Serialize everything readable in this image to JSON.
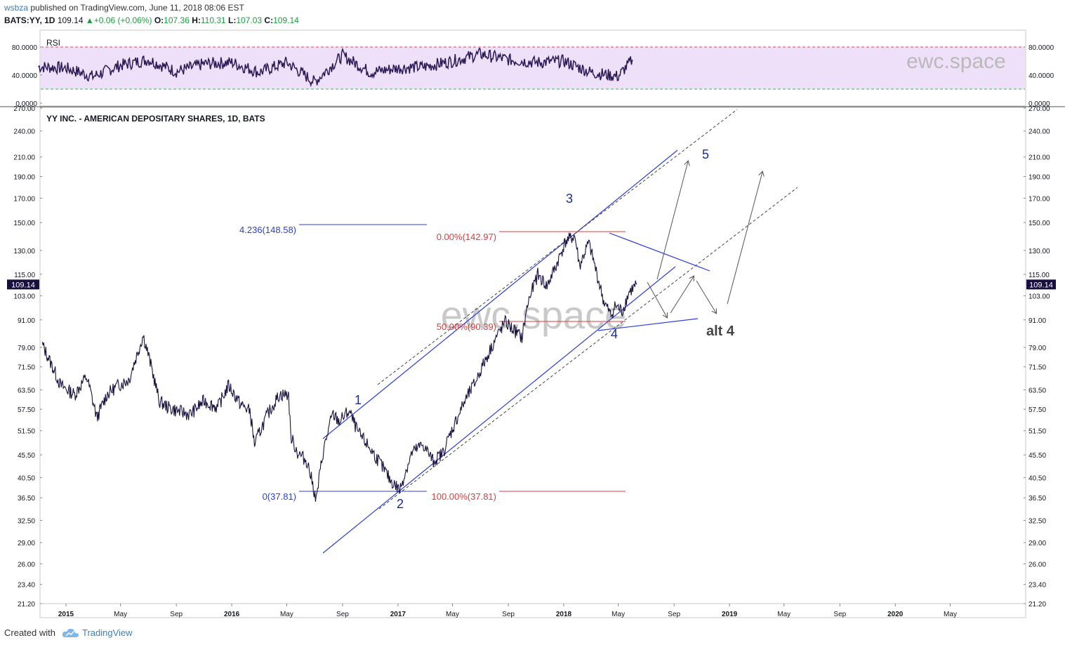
{
  "header": {
    "author": "wsbza",
    "published_text": " published on TradingView.com, June 11, 2018 08:06 EST",
    "symbol": "BATS:YY, 1D",
    "last": "109.14",
    "change": "+0.06 (+0.06%)",
    "open_label": "O:",
    "open": "107.36",
    "high_label": "H:",
    "high": "110.31",
    "low_label": "L:",
    "low": "107.03",
    "close_label": "C:",
    "close": "109.14"
  },
  "footer": {
    "created_with": "Created with",
    "brand": "TradingView"
  },
  "chart_data": [
    {
      "type": "line",
      "title": "RSI",
      "ylim": [
        0,
        100
      ],
      "y_ticks": [
        "80.0000",
        "40.0000",
        "0.0000"
      ],
      "overbought": 80,
      "oversold": 20,
      "band_color": "#efe0fa",
      "line_color": "#2a1a55",
      "watermark": "ewc.space",
      "x": [
        "2014-11",
        "2015-01",
        "2015-03",
        "2015-05",
        "2015-07",
        "2015-09",
        "2015-11",
        "2016-01",
        "2016-03",
        "2016-05",
        "2016-07",
        "2016-09",
        "2016-11",
        "2017-01",
        "2017-03",
        "2017-05",
        "2017-07",
        "2017-09",
        "2017-11",
        "2018-01",
        "2018-03",
        "2018-05",
        "2018-06"
      ],
      "values": [
        52,
        50,
        38,
        54,
        62,
        45,
        56,
        58,
        44,
        58,
        30,
        68,
        44,
        50,
        52,
        60,
        70,
        62,
        58,
        60,
        44,
        38,
        62
      ]
    },
    {
      "type": "line",
      "title": "YY INC. - AMERICAN DEPOSITARY SHARES, 1D, BATS",
      "y_scale": "log",
      "ylim": [
        21.2,
        270
      ],
      "y_ticks": [
        "270.00",
        "240.00",
        "210.00",
        "190.00",
        "170.00",
        "150.00",
        "130.00",
        "115.00",
        "103.00",
        "91.00",
        "79.00",
        "71.50",
        "63.50",
        "57.50",
        "51.50",
        "45.50",
        "40.50",
        "36.50",
        "32.50",
        "29.00",
        "26.00",
        "23.40",
        "21.20"
      ],
      "x_ticks": [
        {
          "label": "2015",
          "date": "2015-01-01",
          "bold": true
        },
        {
          "label": "May",
          "date": "2015-05-01",
          "bold": false
        },
        {
          "label": "Sep",
          "date": "2015-09-01",
          "bold": false
        },
        {
          "label": "2016",
          "date": "2016-01-01",
          "bold": true
        },
        {
          "label": "May",
          "date": "2016-05-01",
          "bold": false
        },
        {
          "label": "Sep",
          "date": "2016-09-01",
          "bold": false
        },
        {
          "label": "2017",
          "date": "2017-01-01",
          "bold": true
        },
        {
          "label": "May",
          "date": "2017-05-01",
          "bold": false
        },
        {
          "label": "Sep",
          "date": "2017-09-01",
          "bold": false
        },
        {
          "label": "2018",
          "date": "2018-01-01",
          "bold": true
        },
        {
          "label": "May",
          "date": "2018-05-01",
          "bold": false
        },
        {
          "label": "Sep",
          "date": "2018-09-01",
          "bold": false
        },
        {
          "label": "2019",
          "date": "2019-01-01",
          "bold": true
        },
        {
          "label": "May",
          "date": "2019-05-01",
          "bold": false
        },
        {
          "label": "Sep",
          "date": "2019-09-01",
          "bold": false
        },
        {
          "label": "2020",
          "date": "2020-01-01",
          "bold": true
        },
        {
          "label": "May",
          "date": "2020-05-01",
          "bold": false
        }
      ],
      "price_tag": "109.14",
      "line_color": "#1a1040",
      "watermark": "ewc.space",
      "x": [
        "2014-11-10",
        "2014-12-01",
        "2014-12-20",
        "2015-01-20",
        "2015-02-15",
        "2015-03-10",
        "2015-04-01",
        "2015-04-25",
        "2015-05-20",
        "2015-06-10",
        "2015-06-20",
        "2015-07-10",
        "2015-07-25",
        "2015-08-15",
        "2015-09-05",
        "2015-10-01",
        "2015-11-01",
        "2015-12-01",
        "2015-12-25",
        "2016-01-20",
        "2016-02-10",
        "2016-02-20",
        "2016-03-20",
        "2016-04-15",
        "2016-05-05",
        "2016-05-10",
        "2016-05-25",
        "2016-06-15",
        "2016-07-05",
        "2016-07-20",
        "2016-08-10",
        "2016-08-25",
        "2016-09-15",
        "2016-10-05",
        "2016-10-25",
        "2016-11-20",
        "2016-12-15",
        "2017-01-05",
        "2017-02-01",
        "2017-02-25",
        "2017-03-20",
        "2017-04-10",
        "2017-05-01",
        "2017-05-25",
        "2017-06-20",
        "2017-07-15",
        "2017-08-05",
        "2017-08-25",
        "2017-09-15",
        "2017-10-01",
        "2017-10-15",
        "2017-11-05",
        "2017-11-25",
        "2017-12-15",
        "2018-01-05",
        "2018-01-25",
        "2018-02-05",
        "2018-02-25",
        "2018-03-15",
        "2018-03-30",
        "2018-04-15",
        "2018-04-25",
        "2018-05-10",
        "2018-05-25",
        "2018-06-11"
      ],
      "values": [
        80,
        72,
        65,
        62,
        68,
        55,
        62,
        65,
        67,
        78,
        84,
        70,
        60,
        58,
        57,
        56,
        60,
        58,
        65,
        59,
        57,
        48,
        56,
        62,
        62,
        50,
        46,
        44,
        36,
        46,
        56,
        54,
        57,
        51,
        48,
        44,
        40,
        38,
        46,
        48,
        44,
        46,
        52,
        59,
        66,
        75,
        83,
        90,
        86,
        83,
        100,
        115,
        108,
        120,
        136,
        140,
        120,
        135,
        115,
        100,
        93,
        98,
        95,
        105,
        109.14
      ]
    }
  ],
  "annotations": {
    "fib_ext_top": "4.236(148.58)",
    "fib_ext_bottom": "0(37.81)",
    "fib_ret_top": "0.00%(142.97)",
    "fib_ret_mid": "50.00%(90.39)",
    "fib_ret_bottom": "100.00%(37.81)",
    "wave_1": "1",
    "wave_2": "2",
    "wave_3": "3",
    "wave_4": "4",
    "wave_5": "5",
    "alt_4": "alt 4"
  }
}
